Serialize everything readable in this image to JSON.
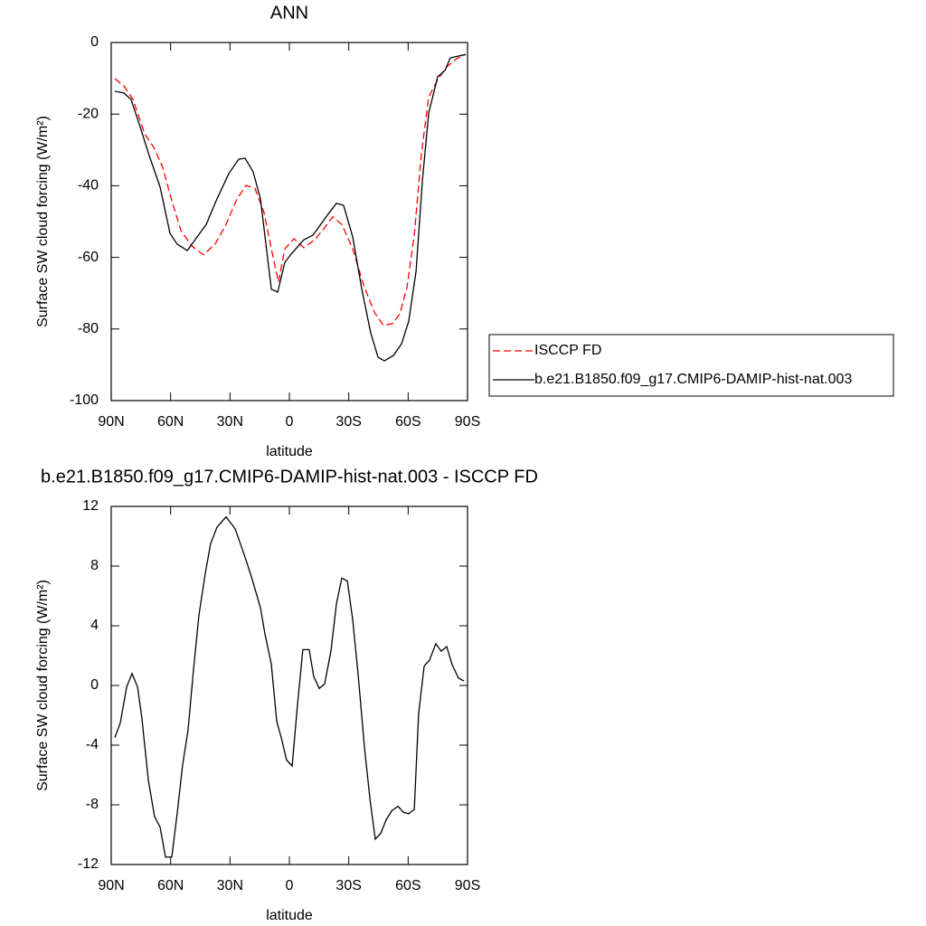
{
  "chart_data": [
    {
      "type": "line",
      "title": "ANN",
      "x_label": "latitude",
      "y_label": "Surface SW cloud forcing (W/m²)",
      "xlim": [
        90,
        -90
      ],
      "xticks": [
        {
          "value": 90,
          "label": "90N"
        },
        {
          "value": 60,
          "label": "60N"
        },
        {
          "value": 30,
          "label": "30N"
        },
        0,
        {
          "value": -30,
          "label": "30S"
        },
        {
          "value": -60,
          "label": "60S"
        },
        {
          "value": -90,
          "label": "90S"
        }
      ],
      "ylim": [
        -100,
        0
      ],
      "yticks": [
        0,
        -20,
        -40,
        -60,
        -80,
        -100
      ],
      "legend": "right",
      "series": [
        {
          "name": "ISCCP FD",
          "color": "#ff0000",
          "line_style": "dashed",
          "x": [
            88.2,
            83.6,
            79,
            73.1,
            68.5,
            64,
            59.4,
            54.8,
            49.3,
            43.4,
            37.5,
            32,
            26.5,
            21.9,
            17.4,
            12.8,
            9.1,
            5.5,
            2.3,
            -2.3,
            -7.3,
            -12.8,
            -17.4,
            -21.9,
            -26.5,
            -32,
            -37.5,
            -42.9,
            -47.5,
            -52.1,
            -55.8,
            -59.4,
            -63.1,
            -66.7,
            -70.4,
            -74.9,
            -79.5,
            -84.5,
            -89.1
          ],
          "values": [
            -10.1,
            -12.1,
            -15.9,
            -25.5,
            -29.3,
            -34.8,
            -44.2,
            -52.5,
            -56.8,
            -59.3,
            -56.3,
            -50.8,
            -43.7,
            -39.9,
            -40.7,
            -47.5,
            -57.6,
            -66.9,
            -57.6,
            -54.8,
            -57.3,
            -55.1,
            -52,
            -48.7,
            -50.8,
            -57.6,
            -67.7,
            -75.3,
            -79,
            -78.5,
            -75.8,
            -68.4,
            -53.8,
            -31.1,
            -15.2,
            -10.4,
            -6.8,
            -4.5,
            -3.3
          ]
        },
        {
          "name": "b.e21.B1850.f09_g17.CMIP6-DAMIP-hist-nat.003",
          "color": "#000000",
          "line_style": "solid",
          "x": [
            88.2,
            83.6,
            80,
            75.4,
            70.8,
            65.3,
            60.3,
            56.7,
            51.6,
            46.6,
            42,
            36.6,
            30.6,
            25.6,
            22.4,
            18.3,
            14.6,
            9.1,
            5.9,
            2.3,
            -0.9,
            -7.3,
            -11.9,
            -19.2,
            -23.8,
            -27.4,
            -32,
            -36.6,
            -41.1,
            -44.8,
            -48,
            -52.6,
            -56.7,
            -60.3,
            -64,
            -67.2,
            -70.4,
            -74.9,
            -78.6,
            -81.3,
            -85.4,
            -89.1
          ],
          "values": [
            -13.6,
            -14.1,
            -15.9,
            -23.5,
            -31.6,
            -40.4,
            -53.3,
            -56.3,
            -58.1,
            -54.3,
            -50.8,
            -43.7,
            -36.6,
            -32.6,
            -32.3,
            -36.1,
            -43.7,
            -68.9,
            -69.7,
            -61.4,
            -59.1,
            -55.1,
            -53.8,
            -48.2,
            -44.9,
            -45.5,
            -54.3,
            -68.9,
            -81.1,
            -87.9,
            -88.9,
            -87.4,
            -84.1,
            -77.8,
            -63.9,
            -38.6,
            -19.7,
            -9.6,
            -7.8,
            -4.3,
            -3.8,
            -3.3
          ]
        }
      ]
    },
    {
      "type": "line",
      "title": "b.e21.B1850.f09_g17.CMIP6-DAMIP-hist-nat.003 - ISCCP FD",
      "x_label": "latitude",
      "y_label": "Surface SW cloud forcing (W/m²)",
      "xlim": [
        90,
        -90
      ],
      "xticks": [
        {
          "value": 90,
          "label": "90N"
        },
        {
          "value": 60,
          "label": "60N"
        },
        {
          "value": 30,
          "label": "30N"
        },
        0,
        {
          "value": -30,
          "label": "30S"
        },
        {
          "value": -60,
          "label": "60S"
        },
        {
          "value": -90,
          "label": "90S"
        }
      ],
      "ylim": [
        -12,
        12
      ],
      "yticks": [
        12,
        8,
        4,
        0,
        -4,
        -8,
        -12
      ],
      "series": [
        {
          "color": "#000000",
          "line_style": "solid",
          "x": [
            88.2,
            85.4,
            82.2,
            79.5,
            76.7,
            74.5,
            71.3,
            68.1,
            65.3,
            62.6,
            59.4,
            56.7,
            53.9,
            51.2,
            48.4,
            45.7,
            42.5,
            39.8,
            36.6,
            32,
            27.4,
            22.9,
            19.2,
            14.6,
            12.4,
            9.1,
            6.4,
            4.1,
            1.4,
            -1.4,
            -4.1,
            -6.8,
            -10,
            -12.3,
            -15.1,
            -17.8,
            -21,
            -23.8,
            -26.5,
            -29.3,
            -32,
            -34.7,
            -37.9,
            -40.7,
            -43.4,
            -46.2,
            -48.9,
            -51.7,
            -54.9,
            -57.6,
            -60.3,
            -63.1,
            -65.3,
            -68.1,
            -70.8,
            -74,
            -76.7,
            -79.5,
            -82.2,
            -85.4,
            -88.2
          ],
          "values": [
            -3.5,
            -2.5,
            -0.1,
            0.8,
            -0.1,
            -2.2,
            -6.3,
            -8.8,
            -9.5,
            -11.5,
            -11.5,
            -8.6,
            -5.3,
            -3,
            1.1,
            4.7,
            7.5,
            9.5,
            10.6,
            11.3,
            10.5,
            8.8,
            7.3,
            5.2,
            3.5,
            1.4,
            -2.4,
            -3.5,
            -5,
            -5.4,
            -1.3,
            2.4,
            2.4,
            0.6,
            -0.2,
            0.1,
            2.3,
            5.5,
            7.2,
            7,
            4.4,
            0.8,
            -4.1,
            -7.6,
            -10.3,
            -9.9,
            -9,
            -8.4,
            -8.1,
            -8.5,
            -8.6,
            -8.3,
            -1.9,
            1.3,
            1.7,
            2.8,
            2.3,
            2.6,
            1.4,
            0.5,
            0.3
          ]
        }
      ]
    }
  ]
}
